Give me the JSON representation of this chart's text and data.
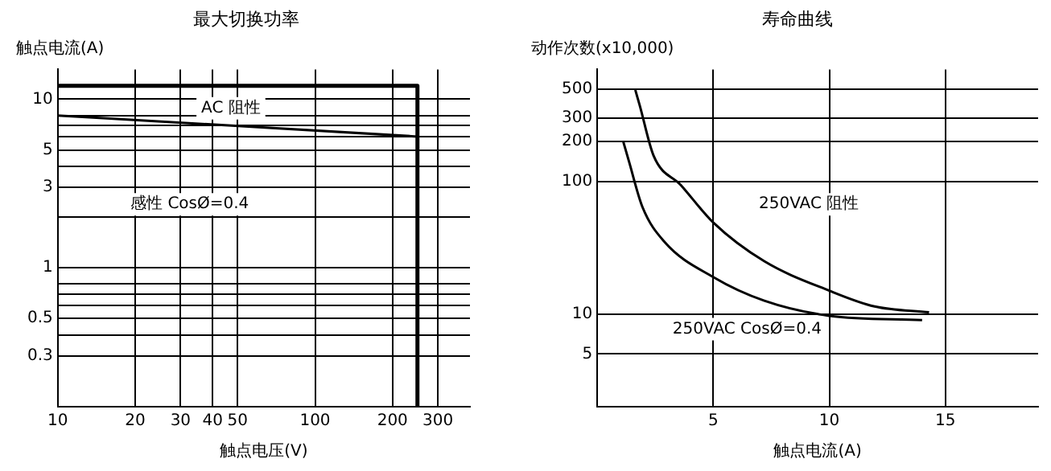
{
  "chart_data": [
    {
      "type": "line",
      "title": "最大切换功率",
      "xlabel": "触点电压(V)",
      "ylabel": "触点电流(A)",
      "log": "xy",
      "xlim": [
        10,
        400
      ],
      "ylim": [
        0.15,
        15
      ],
      "xticks": [
        10,
        20,
        30,
        40,
        50,
        100,
        200,
        300
      ],
      "yticks": [
        10,
        {
          "value": 8,
          "label": null
        },
        {
          "value": 7,
          "label": null
        },
        {
          "value": 6,
          "label": null
        },
        5,
        {
          "value": 4,
          "label": null
        },
        3,
        {
          "value": 2,
          "label": null
        },
        1,
        {
          "value": 0.8,
          "label": null
        },
        {
          "value": 0.7,
          "label": null
        },
        {
          "value": 0.6,
          "label": null
        },
        0.5,
        {
          "value": 0.4,
          "label": null
        },
        0.3
      ],
      "series": [
        {
          "color": "#000000",
          "x": [
            10,
            250,
            250
          ],
          "values": [
            12,
            12,
            0.15
          ]
        },
        {
          "color": "#000000",
          "x": [
            10,
            250
          ],
          "values": [
            8,
            6
          ]
        }
      ],
      "annotations": [
        "AC 阻性",
        "感性 CosØ=0.4"
      ],
      "grid": true,
      "legend": false,
      "marker": "none"
    },
    {
      "type": "line",
      "title": "寿命曲线",
      "xlabel": "触点电流(A)",
      "ylabel": "动作次数(x10,000)",
      "log": "y",
      "xlim": [
        0,
        19
      ],
      "ylim": [
        2,
        700
      ],
      "xticks": [
        5,
        10,
        15
      ],
      "yticks": [
        500,
        300,
        200,
        100,
        10,
        5
      ],
      "series": [
        {
          "color": "#000000",
          "x": [
            1.64,
            1.83,
            2.43,
            3.6,
            5,
            7.2,
            10,
            11.95,
            14.3
          ],
          "values": [
            490,
            375,
            156,
            94,
            49,
            25,
            15,
            11.4,
            10.3
          ]
        },
        {
          "color": "#000000",
          "x": [
            1.12,
            1.36,
            1.95,
            2.9,
            5,
            7.2,
            10,
            14
          ],
          "values": [
            200,
            143,
            64,
            35,
            19,
            12.6,
            9.7,
            9
          ]
        }
      ],
      "annotations": [
        "250VAC 阻性",
        "250VAC CosØ=0.4"
      ],
      "grid": true,
      "legend": false,
      "marker": "none"
    }
  ]
}
